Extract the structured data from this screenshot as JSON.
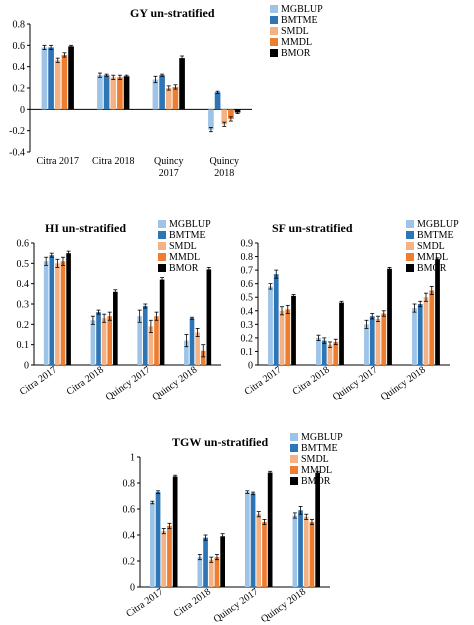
{
  "series_colors": [
    "#9dc3e6",
    "#2e75b6",
    "#f4b183",
    "#ed7d31",
    "#000000"
  ],
  "chart_data": [
    {
      "type": "bar",
      "title": "GY un-stratified",
      "categories": [
        "Citra 2017",
        "Citra 2018",
        "Quincy 2017",
        "Quincy 2018"
      ],
      "ylim": [
        -0.4,
        0.8
      ],
      "yticks": [
        "-0.4",
        "-0.2",
        "0",
        "0.2",
        "0.4",
        "0.6",
        "0.8"
      ],
      "legend_position": "top-right",
      "series": [
        {
          "name": "MGBLUP",
          "values": [
            0.58,
            0.32,
            0.28,
            -0.19
          ],
          "errors": [
            0.02,
            0.02,
            0.03,
            0.02
          ]
        },
        {
          "name": "BMTME",
          "values": [
            0.58,
            0.32,
            0.32,
            0.16
          ],
          "errors": [
            0.02,
            0.01,
            0.01,
            0.01
          ]
        },
        {
          "name": "SMDL",
          "values": [
            0.46,
            0.3,
            0.2,
            -0.14
          ],
          "errors": [
            0.02,
            0.02,
            0.02,
            0.02
          ]
        },
        {
          "name": "MMDL",
          "values": [
            0.51,
            0.3,
            0.21,
            -0.09
          ],
          "errors": [
            0.02,
            0.02,
            0.02,
            0.02
          ]
        },
        {
          "name": "BMOR",
          "values": [
            0.59,
            0.31,
            0.48,
            -0.03
          ],
          "errors": [
            0.01,
            0.01,
            0.02,
            0.01
          ]
        }
      ]
    },
    {
      "type": "bar",
      "title": "HI un-stratified",
      "categories": [
        "Citra 2017",
        "Citra 2018",
        "Quincy 2017",
        "Quincy 2018"
      ],
      "ylim": [
        0,
        0.6
      ],
      "yticks": [
        "0",
        "0.1",
        "0.2",
        "0.3",
        "0.4",
        "0.5",
        "0.6"
      ],
      "legend_position": "top-right",
      "series": [
        {
          "name": "MGBLUP",
          "values": [
            0.51,
            0.22,
            0.24,
            0.12
          ],
          "errors": [
            0.02,
            0.02,
            0.03,
            0.03
          ]
        },
        {
          "name": "BMTME",
          "values": [
            0.54,
            0.26,
            0.29,
            0.23
          ],
          "errors": [
            0.01,
            0.01,
            0.01,
            0.005
          ]
        },
        {
          "name": "SMDL",
          "values": [
            0.5,
            0.23,
            0.19,
            0.16
          ],
          "errors": [
            0.02,
            0.02,
            0.03,
            0.02
          ]
        },
        {
          "name": "MMDL",
          "values": [
            0.51,
            0.24,
            0.24,
            0.07
          ],
          "errors": [
            0.02,
            0.02,
            0.02,
            0.03
          ]
        },
        {
          "name": "BMOR",
          "values": [
            0.55,
            0.36,
            0.42,
            0.47
          ],
          "errors": [
            0.01,
            0.01,
            0.01,
            0.01
          ]
        }
      ]
    },
    {
      "type": "bar",
      "title": "SF un-stratified",
      "categories": [
        "Citra 2017",
        "Citra 2018",
        "Quincy 2017",
        "Quincy 2018"
      ],
      "ylim": [
        0,
        0.9
      ],
      "yticks": [
        "0",
        "0.1",
        "0.2",
        "0.3",
        "0.4",
        "0.5",
        "0.6",
        "0.7",
        "0.8",
        "0.9"
      ],
      "legend_position": "top-right",
      "series": [
        {
          "name": "MGBLUP",
          "values": [
            0.58,
            0.2,
            0.3,
            0.42
          ],
          "errors": [
            0.02,
            0.02,
            0.03,
            0.03
          ]
        },
        {
          "name": "BMTME",
          "values": [
            0.67,
            0.18,
            0.36,
            0.45
          ],
          "errors": [
            0.03,
            0.02,
            0.02,
            0.02
          ]
        },
        {
          "name": "SMDL",
          "values": [
            0.4,
            0.15,
            0.34,
            0.5
          ],
          "errors": [
            0.03,
            0.02,
            0.02,
            0.03
          ]
        },
        {
          "name": "MMDL",
          "values": [
            0.41,
            0.17,
            0.38,
            0.55
          ],
          "errors": [
            0.03,
            0.02,
            0.02,
            0.03
          ]
        },
        {
          "name": "BMOR",
          "values": [
            0.51,
            0.46,
            0.71,
            0.78
          ],
          "errors": [
            0.01,
            0.01,
            0.01,
            0.01
          ]
        }
      ]
    },
    {
      "type": "bar",
      "title": "TGW un-stratified",
      "categories": [
        "Citra 2017",
        "Citra 2018",
        "Quincy 2017",
        "Quincy 2018"
      ],
      "ylim": [
        0,
        1
      ],
      "yticks": [
        "0",
        "0.2",
        "0.4",
        "0.6",
        "0.8",
        "1"
      ],
      "legend_position": "top-right",
      "series": [
        {
          "name": "MGBLUP",
          "values": [
            0.65,
            0.23,
            0.73,
            0.55
          ],
          "errors": [
            0.01,
            0.02,
            0.01,
            0.02
          ]
        },
        {
          "name": "BMTME",
          "values": [
            0.73,
            0.38,
            0.72,
            0.59
          ],
          "errors": [
            0.01,
            0.02,
            0.01,
            0.03
          ]
        },
        {
          "name": "SMDL",
          "values": [
            0.43,
            0.21,
            0.56,
            0.54
          ],
          "errors": [
            0.02,
            0.02,
            0.02,
            0.02
          ]
        },
        {
          "name": "MMDL",
          "values": [
            0.47,
            0.23,
            0.5,
            0.5
          ],
          "errors": [
            0.02,
            0.02,
            0.02,
            0.02
          ]
        },
        {
          "name": "BMOR",
          "values": [
            0.85,
            0.39,
            0.88,
            0.88
          ],
          "errors": [
            0.01,
            0.02,
            0.01,
            0.01
          ]
        }
      ]
    }
  ]
}
